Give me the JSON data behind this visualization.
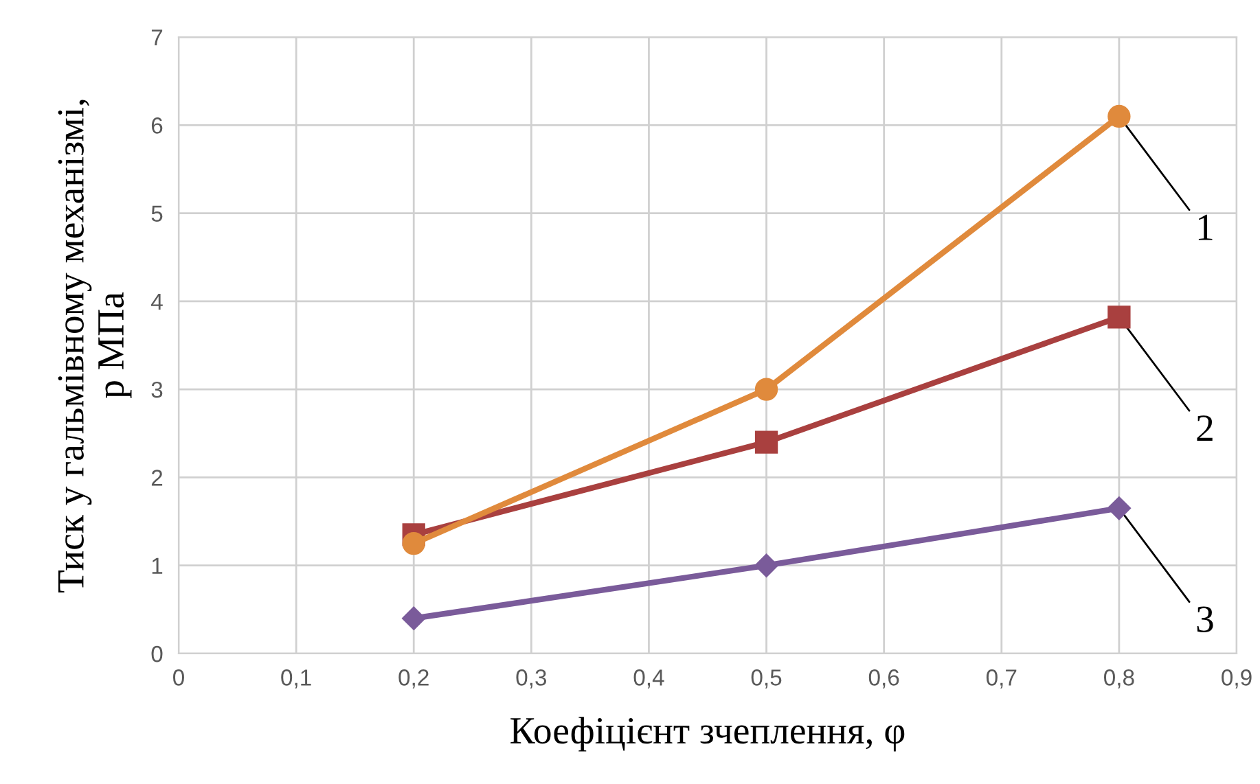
{
  "chart_data": {
    "type": "line",
    "xlabel": "Коефіцієнт зчеплення, φ",
    "ylabel": "Тиск у гальмівному механізмі,\nр МПа",
    "x": [
      0.2,
      0.5,
      0.8
    ],
    "series": [
      {
        "name": "1",
        "color": "#e08a3c",
        "marker": "circle",
        "values": [
          1.25,
          3.0,
          6.1
        ]
      },
      {
        "name": "2",
        "color": "#a9403f",
        "marker": "square",
        "values": [
          1.35,
          2.4,
          3.82
        ]
      },
      {
        "name": "3",
        "color": "#7a5b9a",
        "marker": "diamond",
        "values": [
          0.4,
          1.0,
          1.65
        ]
      }
    ],
    "xlim": [
      0,
      0.9
    ],
    "ylim": [
      0,
      7
    ],
    "xticks": [
      0,
      {
        "value": 0.1,
        "label": "0,1"
      },
      {
        "value": 0.2,
        "label": "0,2"
      },
      {
        "value": 0.3,
        "label": "0,3"
      },
      {
        "value": 0.4,
        "label": "0,4"
      },
      {
        "value": 0.5,
        "label": "0,5"
      },
      {
        "value": 0.6,
        "label": "0,6"
      },
      {
        "value": 0.7,
        "label": "0,7"
      },
      {
        "value": 0.8,
        "label": "0,8"
      },
      {
        "value": 0.9,
        "label": "0,9"
      }
    ],
    "yticks": [
      0,
      1,
      2,
      3,
      4,
      5,
      6,
      7
    ],
    "grid": true,
    "line_style": "solid"
  }
}
